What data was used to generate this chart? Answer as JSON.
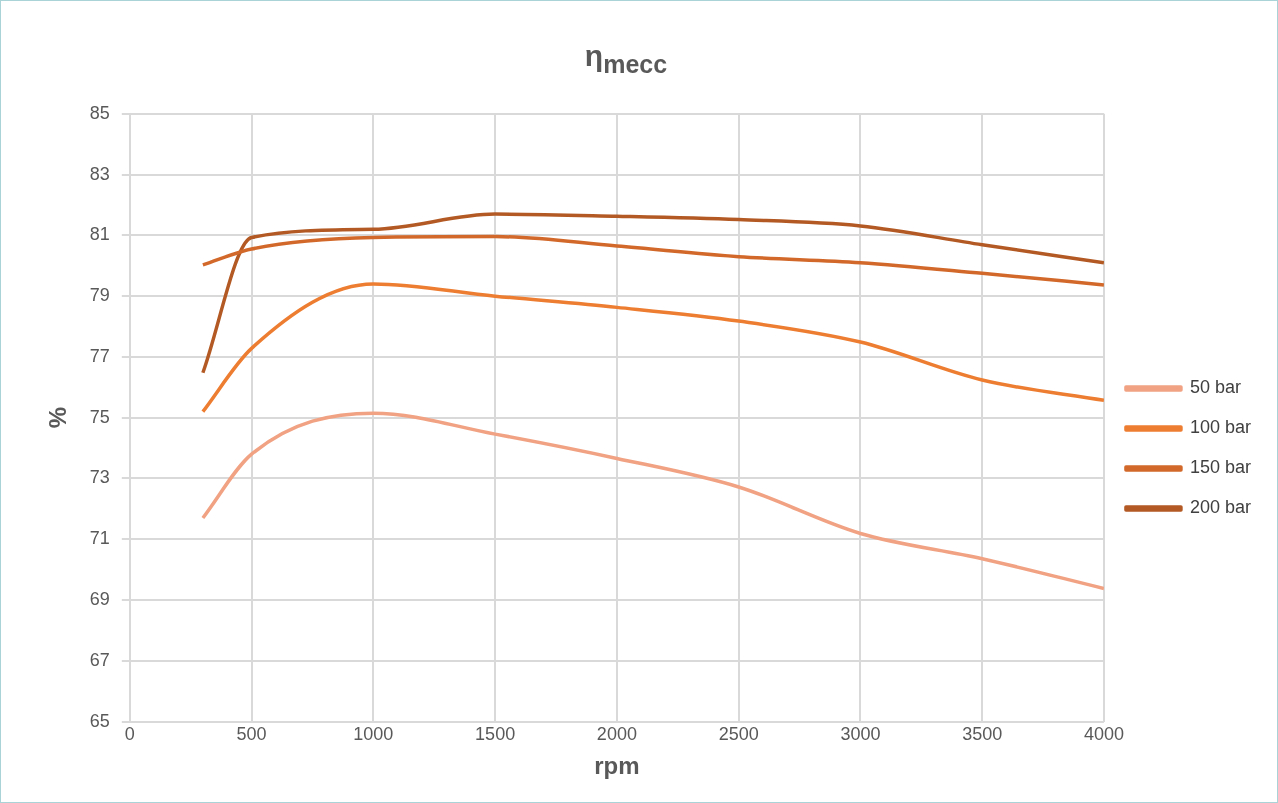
{
  "chart_data": {
    "type": "line",
    "title": "η$_{mecc}$",
    "xlabel": "rpm",
    "ylabel": "%",
    "x": [
      300,
      500,
      1000,
      1500,
      2000,
      2500,
      3000,
      3500,
      4000
    ],
    "series": [
      {
        "name": "50 bar",
        "color": "#f1a283",
        "values": [
          71.7,
          73.8,
          75.15,
          74.46,
          73.66,
          72.72,
          71.19,
          70.36,
          69.38
        ]
      },
      {
        "name": "100 bar",
        "color": "#ed7d31",
        "values": [
          75.2,
          77.28,
          79.4,
          79.0,
          78.63,
          78.18,
          77.49,
          76.24,
          75.57
        ]
      },
      {
        "name": "150 bar",
        "color": "#d2692a",
        "values": [
          80.03,
          80.55,
          80.93,
          80.96,
          80.65,
          80.3,
          80.1,
          79.75,
          79.37
        ]
      },
      {
        "name": "200 bar",
        "color": "#b35a24",
        "values": [
          76.48,
          80.93,
          81.2,
          81.7,
          81.63,
          81.52,
          81.31,
          80.69,
          80.1
        ]
      }
    ],
    "xlim": [
      0,
      4000
    ],
    "xticks": [
      0,
      500,
      1000,
      1500,
      2000,
      2500,
      3000,
      3500,
      4000
    ],
    "ylim": [
      65,
      85
    ],
    "yticks": [
      65,
      67,
      69,
      71,
      73,
      75,
      77,
      79,
      81,
      83,
      85
    ],
    "grid": true,
    "legend": "right",
    "marker": "none",
    "line_style": "solid"
  }
}
